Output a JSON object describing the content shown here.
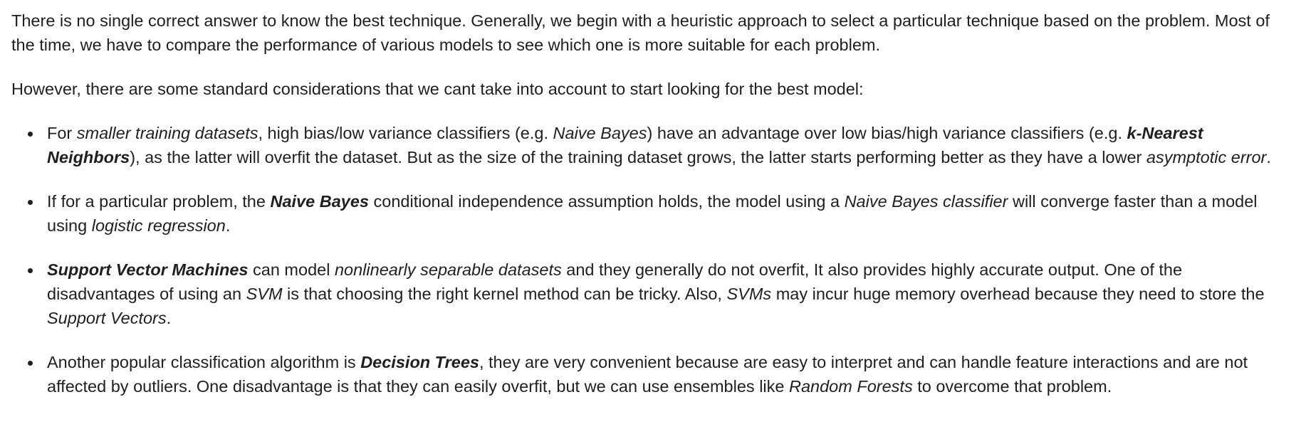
{
  "intro": {
    "p1": "There is no single correct answer to know the best technique. Generally, we begin with a heuristic approach to select a particular technique based on the problem. Most of the time, we have to compare the performance of various models to see which one is more suitable for each problem.",
    "p2": "However, there are some standard considerations that we cant take into account to start looking for the best model:"
  },
  "bullets": [
    {
      "t1": "For ",
      "i1": "smaller training datasets",
      "t2": ", high bias/low variance classifiers (e.g. ",
      "i2": "Naive Bayes",
      "t3": ") have an advantage over low bias/high variance classifiers (e.g. ",
      "bi1": "k-Nearest Neighbors",
      "t4": "), as the latter will overfit the dataset. But as the size of the training dataset grows, the latter starts performing better as they have a lower ",
      "i3": "asymptotic error",
      "t5": "."
    },
    {
      "t1": "If for a particular problem, the ",
      "bi1": "Naive Bayes",
      "t2": " conditional independence assumption holds, the model using a ",
      "i1": "Naive Bayes classifier",
      "t3": " will converge faster than a model using ",
      "i2": "logistic regression",
      "t4": "."
    },
    {
      "bi1": "Support Vector Machines",
      "t1": " can model ",
      "i1": "nonlinearly separable datasets",
      "t2": " and they generally do not overfit, It also provides highly accurate output. One of the disadvantages of using an ",
      "i2": "SVM",
      "t3": " is that choosing the right kernel method can be tricky. Also, ",
      "i3": "SVMs",
      "t4": " may incur huge memory overhead because they need to store the ",
      "i4": "Support Vectors",
      "t5": "."
    },
    {
      "t1": "Another popular classification algorithm is ",
      "bi1": "Decision Trees",
      "t2": ", they are very convenient because are easy to interpret and can handle feature interactions and are not affected by outliers. One disadvantage is that they can easily overfit, but we can use ensembles like ",
      "i1": "Random Forests",
      "t3": " to overcome that problem."
    }
  ]
}
